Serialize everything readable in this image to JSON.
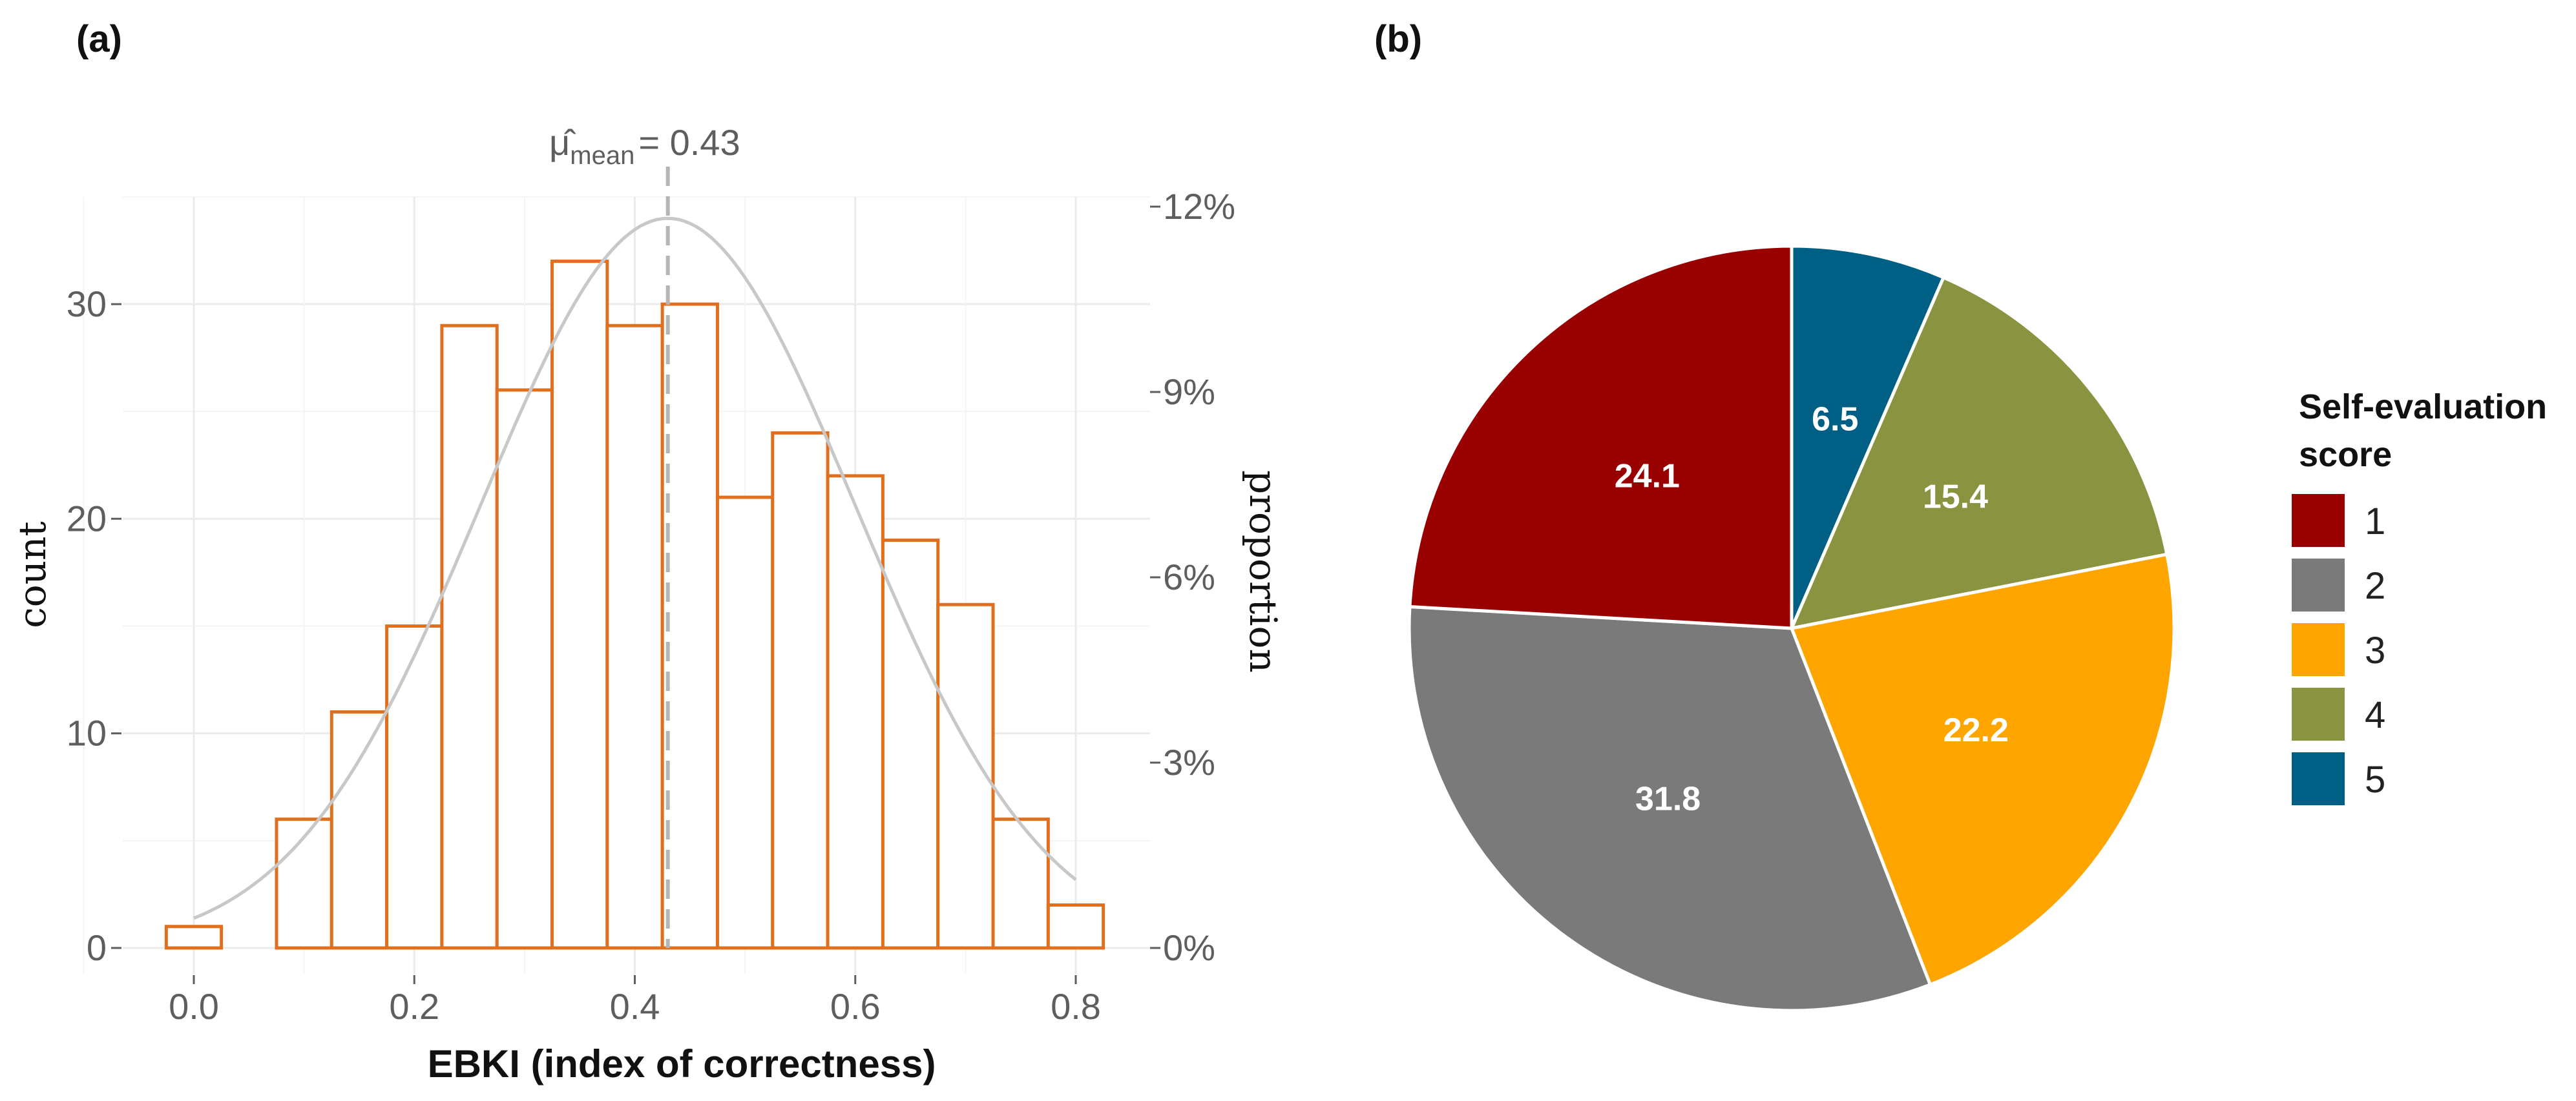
{
  "chart_data": [
    {
      "panel": "(a)",
      "type": "bar",
      "xlabel": "EBKI (index of correctness)",
      "ylabel": "count",
      "ylabel_right": "proportion",
      "xlim": [
        -0.05,
        0.85
      ],
      "ylim": [
        0,
        35
      ],
      "x_ticks": [
        "0.0",
        "0.2",
        "0.4",
        "0.6",
        "0.8"
      ],
      "y_ticks": [
        "0",
        "10",
        "20",
        "30"
      ],
      "y_ticks_right": [
        "0%",
        "3%",
        "6%",
        "9%",
        "12%"
      ],
      "bin_width": 0.05,
      "bin_centers": [
        0.0,
        0.05,
        0.1,
        0.15,
        0.2,
        0.25,
        0.3,
        0.35,
        0.4,
        0.45,
        0.5,
        0.55,
        0.6,
        0.65,
        0.7,
        0.75,
        0.8
      ],
      "values": [
        1,
        0,
        6,
        11,
        15,
        29,
        26,
        32,
        29,
        30,
        21,
        24,
        22,
        19,
        16,
        6,
        2
      ],
      "bar_color": "#e0701e",
      "mean": {
        "value": 0.43,
        "symbol": "μ̂",
        "subscript": "mean",
        "text": "= 0.43"
      },
      "normal_curve": {
        "mean": 0.43,
        "sd": 0.17,
        "peak_count": 34,
        "color": "#c8c8c8"
      },
      "grid": true
    },
    {
      "panel": "(b)",
      "type": "pie",
      "legend_title": "Self-evaluation score",
      "legend_title_lines": [
        "Self-evaluation",
        "score"
      ],
      "legend_position": "right",
      "slices": [
        {
          "category": "1",
          "value": 24.1,
          "label": "24.1",
          "color": "#990000"
        },
        {
          "category": "2",
          "value": 31.8,
          "label": "31.8",
          "color": "#7a7a7a"
        },
        {
          "category": "3",
          "value": 22.2,
          "label": "22.2",
          "color": "#ffa500"
        },
        {
          "category": "4",
          "value": 15.4,
          "label": "15.4",
          "color": "#8a9440"
        },
        {
          "category": "5",
          "value": 6.5,
          "label": "6.5",
          "color": "#005f85"
        }
      ]
    }
  ]
}
